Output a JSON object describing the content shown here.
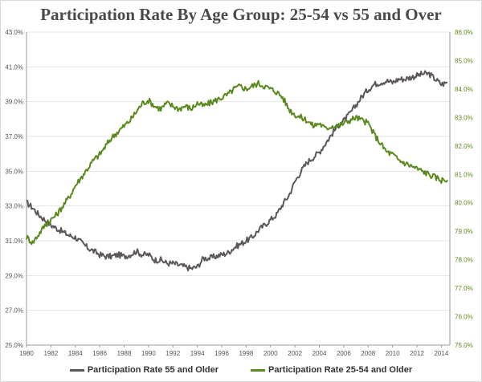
{
  "chart_data": {
    "type": "line",
    "title": "Participation Rate By Age Group: 25-54 vs 55 and Over",
    "x_ticks": [
      "1980",
      "1982",
      "1984",
      "1986",
      "1988",
      "1990",
      "1992",
      "1994",
      "1996",
      "1998",
      "2000",
      "2002",
      "2004",
      "2006",
      "2008",
      "2010",
      "2012",
      "2014"
    ],
    "xlim": [
      1980,
      2014.7
    ],
    "left_axis": {
      "ylim": [
        25.0,
        43.0
      ],
      "ticks": [
        "25.0%",
        "27.0%",
        "29.0%",
        "31.0%",
        "33.0%",
        "35.0%",
        "37.0%",
        "39.0%",
        "41.0%",
        "43.0%"
      ]
    },
    "right_axis": {
      "ylim": [
        75.0,
        86.0
      ],
      "ticks": [
        "75.0%",
        "76.0%",
        "77.0%",
        "78.0%",
        "79.0%",
        "80.0%",
        "81.0%",
        "82.0%",
        "83.0%",
        "84.0%",
        "85.0%",
        "86.0%"
      ]
    },
    "series": [
      {
        "name": "Participation Rate 55 and Older",
        "axis": "left",
        "color": "#5e5758",
        "x": [
          1980,
          1980.5,
          1981,
          1981.5,
          1982,
          1982.5,
          1983,
          1983.5,
          1984,
          1984.5,
          1985,
          1985.5,
          1986,
          1986.5,
          1987,
          1987.5,
          1988,
          1988.5,
          1989,
          1989.5,
          1990,
          1990.5,
          1991,
          1991.5,
          1992,
          1992.5,
          1993,
          1993.5,
          1994,
          1994.5,
          1995,
          1995.5,
          1996,
          1996.5,
          1997,
          1997.5,
          1998,
          1998.5,
          1999,
          1999.5,
          2000,
          2000.5,
          2001,
          2001.5,
          2002,
          2002.5,
          2003,
          2003.5,
          2004,
          2004.5,
          2005,
          2005.5,
          2006,
          2006.5,
          2007,
          2007.5,
          2008,
          2008.5,
          2009,
          2009.5,
          2010,
          2010.5,
          2011,
          2011.5,
          2012,
          2012.5,
          2013,
          2013.5,
          2014,
          2014.5
        ],
        "y": [
          33.2,
          32.9,
          32.5,
          32.2,
          31.9,
          31.7,
          31.5,
          31.3,
          31.2,
          30.9,
          30.6,
          30.4,
          30.2,
          30.1,
          30.1,
          30.2,
          30.1,
          30.2,
          30.4,
          30.2,
          30.2,
          29.9,
          29.9,
          29.7,
          29.7,
          29.6,
          29.5,
          29.4,
          29.5,
          30.0,
          30.0,
          30.1,
          30.2,
          30.3,
          30.6,
          30.8,
          31.0,
          31.2,
          31.6,
          31.9,
          32.2,
          32.5,
          33.1,
          33.6,
          34.4,
          35.0,
          35.5,
          35.8,
          36.1,
          36.6,
          37.1,
          37.6,
          37.9,
          38.3,
          38.8,
          39.3,
          39.7,
          40.0,
          40.1,
          40.2,
          40.1,
          40.3,
          40.3,
          40.4,
          40.5,
          40.6,
          40.6,
          40.3,
          40.0,
          40.1
        ]
      },
      {
        "name": "Participation Rate 25-54 and Older",
        "axis": "right",
        "color": "#5a8a1e",
        "x": [
          1980,
          1980.5,
          1981,
          1981.5,
          1982,
          1982.5,
          1983,
          1983.5,
          1984,
          1984.5,
          1985,
          1985.5,
          1986,
          1986.5,
          1987,
          1987.5,
          1988,
          1988.5,
          1989,
          1989.5,
          1990,
          1990.5,
          1991,
          1991.5,
          1992,
          1992.5,
          1993,
          1993.5,
          1994,
          1994.5,
          1995,
          1995.5,
          1996,
          1996.5,
          1997,
          1997.5,
          1998,
          1998.5,
          1999,
          1999.5,
          2000,
          2000.5,
          2001,
          2001.5,
          2002,
          2002.5,
          2003,
          2003.5,
          2004,
          2004.5,
          2005,
          2005.5,
          2006,
          2006.5,
          2007,
          2007.5,
          2008,
          2008.5,
          2009,
          2009.5,
          2010,
          2010.5,
          2011,
          2011.5,
          2012,
          2012.5,
          2013,
          2013.5,
          2014,
          2014.5
        ],
        "y": [
          78.8,
          78.6,
          78.9,
          79.2,
          79.4,
          79.6,
          79.9,
          80.2,
          80.6,
          80.9,
          81.2,
          81.5,
          81.7,
          82.0,
          82.3,
          82.5,
          82.7,
          82.9,
          83.2,
          83.5,
          83.6,
          83.4,
          83.3,
          83.5,
          83.4,
          83.3,
          83.4,
          83.3,
          83.5,
          83.4,
          83.5,
          83.6,
          83.7,
          83.8,
          84.0,
          84.1,
          84.0,
          84.1,
          84.2,
          84.1,
          84.0,
          83.9,
          83.7,
          83.3,
          83.1,
          83.0,
          82.9,
          82.7,
          82.8,
          82.6,
          82.7,
          82.7,
          82.8,
          82.9,
          83.0,
          82.9,
          82.8,
          82.4,
          82.1,
          81.8,
          81.7,
          81.5,
          81.4,
          81.3,
          81.2,
          81.1,
          81.0,
          80.9,
          80.8,
          80.8
        ]
      }
    ],
    "legend_position": "bottom"
  }
}
